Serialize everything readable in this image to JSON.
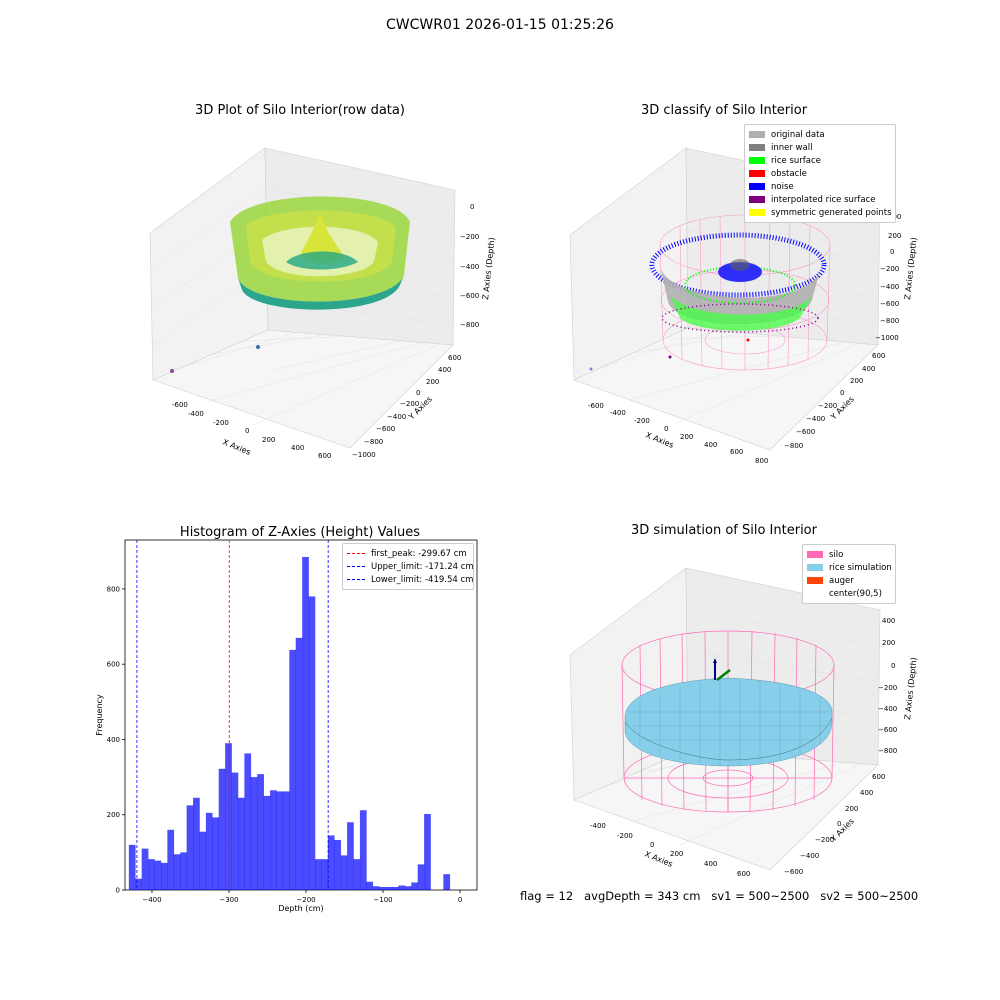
{
  "suptitle": "CWCWR01 2026-01-15 01:25:26",
  "panels": {
    "raw": {
      "title": "3D Plot of Silo Interior(row data)",
      "xlabel": "X Axies",
      "ylabel": "Y Axies",
      "zlabel": "Z Axies (Depth)",
      "xticks": [
        "-600",
        "-400",
        "-200",
        "0",
        "200",
        "400",
        "600"
      ],
      "yticks": [
        "600",
        "400",
        "200",
        "0",
        "−200",
        "−400",
        "−600",
        "−800",
        "−1000"
      ],
      "zticks": [
        "0",
        "−200",
        "−400",
        "−600",
        "−800"
      ]
    },
    "classify": {
      "title": "3D classify of Silo Interior",
      "xlabel": "X Axies",
      "ylabel": "Y Axies",
      "zlabel": "Z Axies (Depth)",
      "xticks": [
        "-600",
        "-400",
        "-200",
        "0",
        "200",
        "400",
        "600",
        "800"
      ],
      "yticks": [
        "600",
        "400",
        "200",
        "0",
        "−200",
        "−400",
        "−600",
        "−800"
      ],
      "zticks": [
        "400",
        "200",
        "0",
        "−200",
        "−400",
        "−600",
        "−800",
        "−1000"
      ],
      "legend": [
        {
          "label": "original data",
          "color": "#b0b0b0"
        },
        {
          "label": "inner wall",
          "color": "#808080"
        },
        {
          "label": "rice surface",
          "color": "#00ff00"
        },
        {
          "label": "obstacle",
          "color": "#ff0000"
        },
        {
          "label": "noise",
          "color": "#0000ff"
        },
        {
          "label": "interpolated rice surface",
          "color": "#800080"
        },
        {
          "label": "symmetric generated points",
          "color": "#ffff00"
        }
      ]
    },
    "simulation": {
      "title": "3D simulation of Silo Interior",
      "xlabel": "X Axies",
      "ylabel": "Y Axies",
      "zlabel": "Z Axies (Depth)",
      "xticks": [
        "-400",
        "-200",
        "0",
        "200",
        "400",
        "600"
      ],
      "yticks": [
        "600",
        "400",
        "200",
        "0",
        "−200",
        "−400",
        "−600"
      ],
      "zticks": [
        "400",
        "200",
        "0",
        "−200",
        "−400",
        "−600",
        "−800"
      ],
      "legend": [
        {
          "label": "silo",
          "color": "#ff69b4"
        },
        {
          "label": "rice simulation",
          "color": "#87ceeb"
        },
        {
          "label": "auger",
          "color": "#ff4500"
        },
        {
          "label": "center(90,5)",
          "color": "#ffffff"
        }
      ],
      "footer": "flag = 12   avgDepth = 343 cm   sv1 = 500~2500   sv2 = 500~2500"
    }
  },
  "chart_data": [
    {
      "type": "bar",
      "title": "Histogram of Z-Axies (Height) Values",
      "xlabel": "Depth (cm)",
      "ylabel": "Frequency",
      "xlim": [
        -435,
        22
      ],
      "ylim": [
        0,
        930
      ],
      "xticks": [
        "−400",
        "−300",
        "−200",
        "−100",
        "0"
      ],
      "yticks": [
        "0",
        "200",
        "400",
        "600",
        "800"
      ],
      "bar_color": "#0000ff",
      "bin_width": 8.33,
      "bin_left_edges": [
        -430,
        -421.67,
        -413.33,
        -405,
        -396.67,
        -388.33,
        -380,
        -371.67,
        -363.33,
        -355,
        -346.67,
        -338.33,
        -330,
        -321.67,
        -313.33,
        -305,
        -296.67,
        -288.33,
        -280,
        -271.67,
        -263.33,
        -255,
        -246.67,
        -238.33,
        -230,
        -221.67,
        -213.33,
        -205,
        -196.67,
        -188.33,
        -180,
        -171.67,
        -163.33,
        -155,
        -146.67,
        -138.33,
        -130,
        -121.67,
        -113.33,
        -105,
        -96.67,
        -88.33,
        -80,
        -71.67,
        -63.33,
        -55,
        -46.67,
        -38.33,
        -30,
        -21.67,
        -13.33,
        -5
      ],
      "values": [
        120,
        30,
        110,
        82,
        78,
        72,
        160,
        95,
        100,
        225,
        245,
        155,
        205,
        193,
        322,
        390,
        312,
        245,
        363,
        300,
        308,
        250,
        265,
        262,
        262,
        638,
        670,
        885,
        780,
        82,
        82,
        145,
        133,
        92,
        180,
        82,
        212,
        22,
        10,
        8,
        8,
        8,
        12,
        10,
        20,
        68,
        202,
        0,
        0,
        42,
        0,
        0
      ],
      "vlines": [
        {
          "x": -299.67,
          "label": "first_peak: -299.67 cm",
          "color": "#ff0000"
        },
        {
          "x": -171.24,
          "label": "Upper_limit: -171.24 cm",
          "color": "#0000ff"
        },
        {
          "x": -419.54,
          "label": "Lower_limit: -419.54 cm",
          "color": "#0000ff"
        }
      ]
    }
  ]
}
